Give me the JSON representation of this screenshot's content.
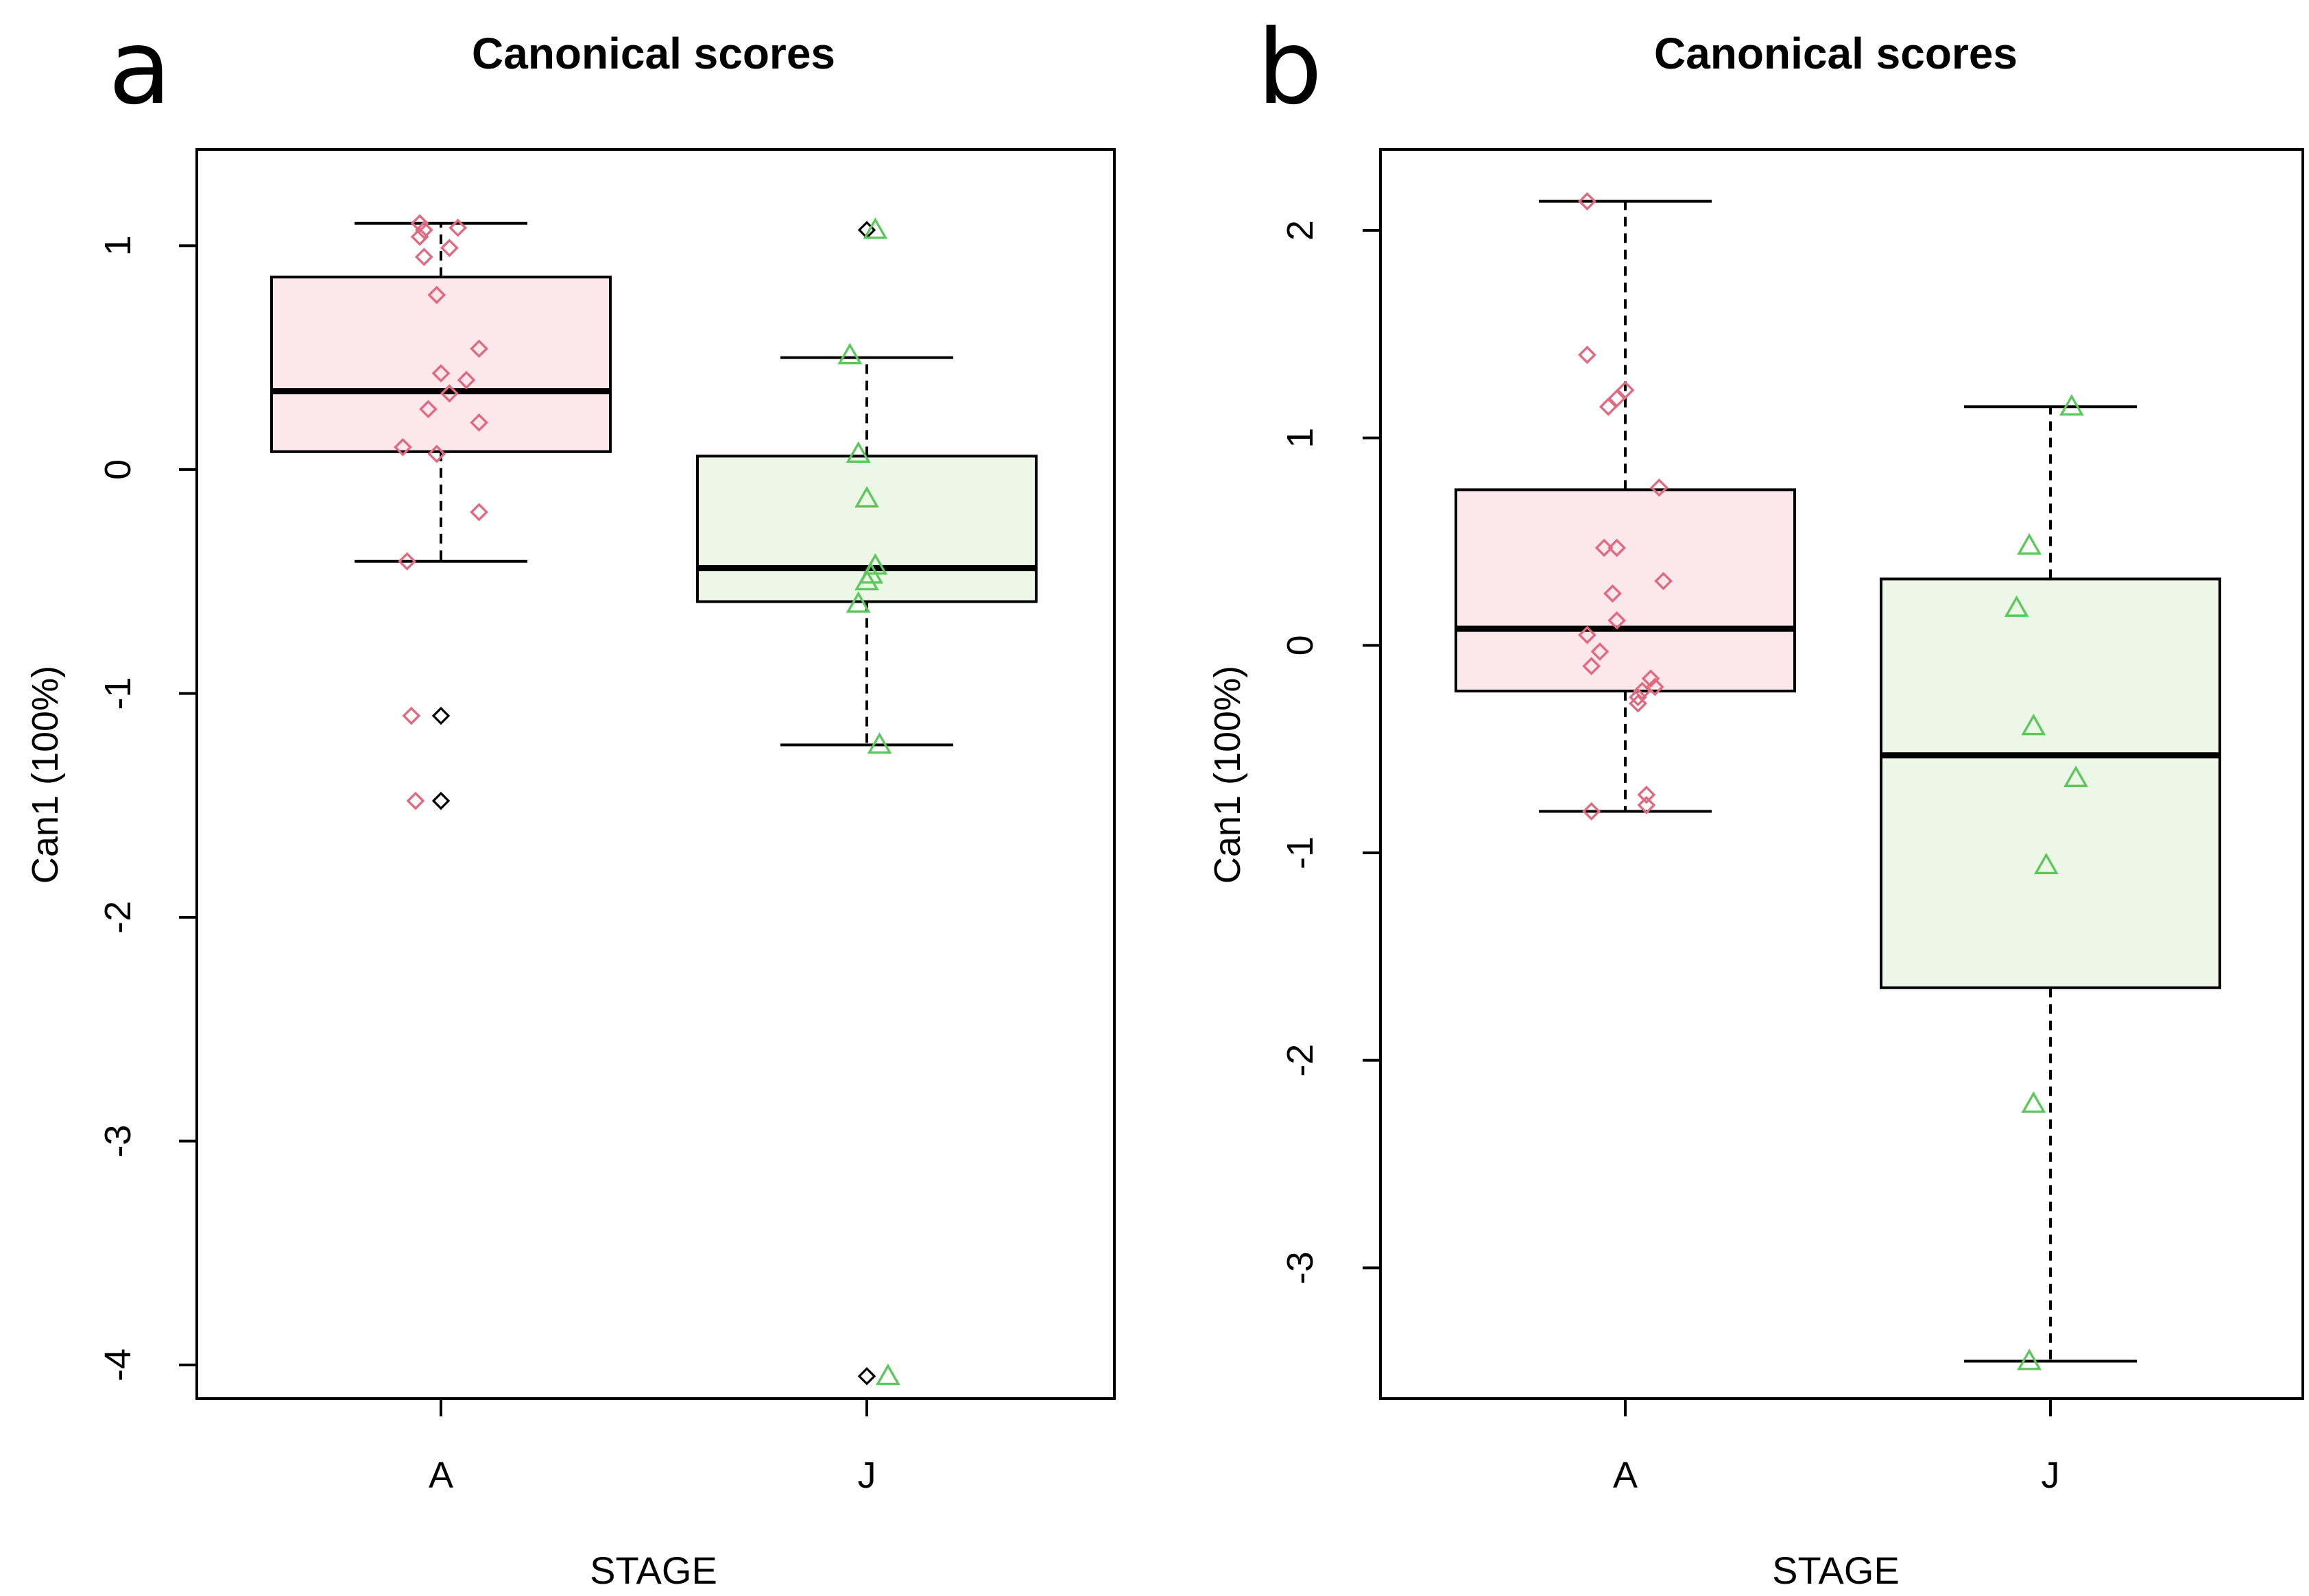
{
  "figure": {
    "panels": [
      "a",
      "b"
    ]
  },
  "chart_data": [
    {
      "panel_label": "a",
      "type": "box",
      "title": "Canonical scores",
      "xlabel": "STAGE",
      "ylabel": "Can1 (100%)",
      "ylim": [
        -4.15,
        1.43
      ],
      "yticks": [
        1,
        0,
        -1,
        -2,
        -3,
        -4
      ],
      "ytick_labels": [
        "1",
        "0",
        "-1",
        "-2",
        "-3",
        "-4"
      ],
      "categories": [
        "A",
        "J"
      ],
      "boxes": [
        {
          "category": "A",
          "whisker_low": -0.41,
          "q1": 0.08,
          "median": 0.35,
          "q3": 0.86,
          "whisker_high": 1.1,
          "fill": "#fce8ec"
        },
        {
          "category": "J",
          "whisker_low": -1.23,
          "q1": -0.59,
          "median": -0.44,
          "q3": 0.06,
          "whisker_high": 0.5,
          "fill": "#ecf7e8"
        }
      ],
      "outliers": [
        {
          "category": "A",
          "values": [
            -1.1,
            -1.48
          ]
        },
        {
          "category": "J",
          "values": [
            1.07,
            -4.05
          ]
        }
      ],
      "points": [
        {
          "category": "A",
          "marker": "diamond",
          "color": "#e06a80",
          "values": [
            1.1,
            1.07,
            1.04,
            1.08,
            0.95,
            0.99,
            0.78,
            0.54,
            0.43,
            0.4,
            0.34,
            0.27,
            0.21,
            0.1,
            0.07,
            -0.19,
            -0.41,
            -1.1,
            -1.48
          ],
          "jitter": [
            -0.05,
            -0.04,
            -0.05,
            0.04,
            -0.04,
            0.02,
            -0.01,
            0.09,
            0.0,
            0.06,
            0.02,
            -0.03,
            0.09,
            -0.09,
            -0.01,
            0.09,
            -0.08,
            -0.07,
            -0.06
          ]
        },
        {
          "category": "J",
          "marker": "triangle",
          "color": "#5cc85c",
          "values": [
            1.07,
            0.51,
            0.07,
            -0.13,
            -0.43,
            -0.47,
            -0.5,
            -0.6,
            -1.23,
            -4.05
          ],
          "jitter": [
            0.02,
            -0.04,
            -0.02,
            0.0,
            0.02,
            0.01,
            0.0,
            -0.02,
            0.03,
            0.05
          ]
        }
      ]
    },
    {
      "panel_label": "b",
      "type": "box",
      "title": "Canonical scores",
      "xlabel": "STAGE",
      "ylabel": "Can1 (100%)",
      "ylim": [
        -3.63,
        2.39
      ],
      "yticks": [
        2,
        1,
        0,
        -1,
        -2,
        -3
      ],
      "ytick_labels": [
        "2",
        "1",
        "0",
        "-1",
        "-2",
        "-3"
      ],
      "categories": [
        "A",
        "J"
      ],
      "boxes": [
        {
          "category": "A",
          "whisker_low": -0.8,
          "q1": -0.22,
          "median": 0.08,
          "q3": 0.75,
          "whisker_high": 2.14,
          "fill": "#fce8ec"
        },
        {
          "category": "J",
          "whisker_low": -3.45,
          "q1": -1.65,
          "median": -0.53,
          "q3": 0.32,
          "whisker_high": 1.15,
          "fill": "#ecf7e8"
        }
      ],
      "outliers": [],
      "points": [
        {
          "category": "A",
          "marker": "diamond",
          "color": "#e06a80",
          "values": [
            2.14,
            1.4,
            1.23,
            1.19,
            1.15,
            0.76,
            0.47,
            0.47,
            0.31,
            0.25,
            0.12,
            0.05,
            -0.03,
            -0.1,
            -0.16,
            -0.2,
            -0.22,
            -0.25,
            -0.28,
            -0.72,
            -0.77,
            -0.8
          ],
          "jitter": [
            -0.09,
            -0.09,
            0.0,
            -0.02,
            -0.04,
            0.08,
            -0.05,
            -0.02,
            0.09,
            -0.03,
            -0.02,
            -0.09,
            -0.06,
            -0.08,
            0.06,
            0.07,
            0.04,
            0.03,
            0.03,
            0.05,
            0.05,
            -0.08
          ]
        },
        {
          "category": "J",
          "marker": "triangle",
          "color": "#5cc85c",
          "values": [
            1.15,
            0.48,
            0.18,
            -0.39,
            -0.64,
            -1.06,
            -2.21,
            -3.45
          ],
          "jitter": [
            0.05,
            -0.05,
            -0.08,
            -0.04,
            0.06,
            -0.01,
            -0.04,
            -0.05
          ]
        }
      ]
    }
  ]
}
